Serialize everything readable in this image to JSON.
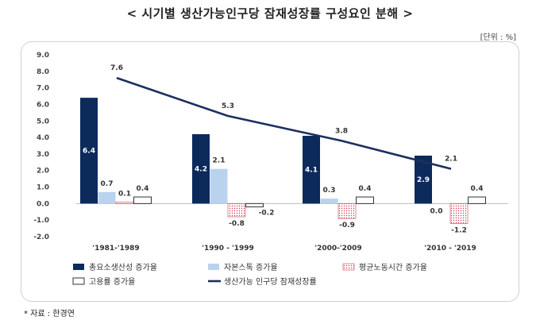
{
  "title": "< 시기별 생산가능인구당 잠재성장률 구성요인 분해 >",
  "unit": "[단위 : %]",
  "source": "* 자료 : 한경연",
  "colors": {
    "tfp": "#0d2a5c",
    "capital": "#b9d3ee",
    "hours": "#d23c55",
    "employment": "#ffffff",
    "line": "#1e2f5e"
  },
  "chart_data": {
    "type": "bar",
    "categories": [
      "'1981-'1989",
      "'1990 - '1999",
      "'2000-'2009",
      "'2010 - '2019"
    ],
    "ylim": [
      -2.0,
      9.0
    ],
    "yticks": [
      "9.0",
      "8.0",
      "7.0",
      "6.0",
      "5.0",
      "4.0",
      "3.0",
      "2.0",
      "1.0",
      "0.0",
      "-1.0",
      "-2.0"
    ],
    "series": [
      {
        "name": "총요소생산성 증가율",
        "values": [
          6.4,
          4.2,
          4.1,
          2.9
        ],
        "color_key": "tfp"
      },
      {
        "name": "자본스톡 증가율",
        "values": [
          0.7,
          2.1,
          0.3,
          0.0
        ],
        "color_key": "capital"
      },
      {
        "name": "평균노동시간 증가율",
        "values": [
          0.1,
          -0.8,
          -0.9,
          -1.2
        ],
        "color_key": "hours"
      },
      {
        "name": "고용률 증가율",
        "values": [
          0.4,
          -0.2,
          0.4,
          0.4
        ],
        "color_key": "employment"
      }
    ],
    "line_series": {
      "name": "생산가능 인구당 잠재성장률",
      "values": [
        7.6,
        5.3,
        3.8,
        2.1
      ]
    },
    "bar_labels": [
      [
        "6.4",
        "0.7",
        "0.1",
        "0.4"
      ],
      [
        "4.2",
        "2.1",
        "-0.8",
        "-0.2"
      ],
      [
        "4.1",
        "0.3",
        "-0.9",
        "0.4"
      ],
      [
        "2.9",
        "0.0",
        "-1.2",
        "0.4"
      ]
    ],
    "line_labels": [
      "7.6",
      "5.3",
      "3.8",
      "2.1"
    ],
    "legend_position": "bottom",
    "grid": false
  }
}
